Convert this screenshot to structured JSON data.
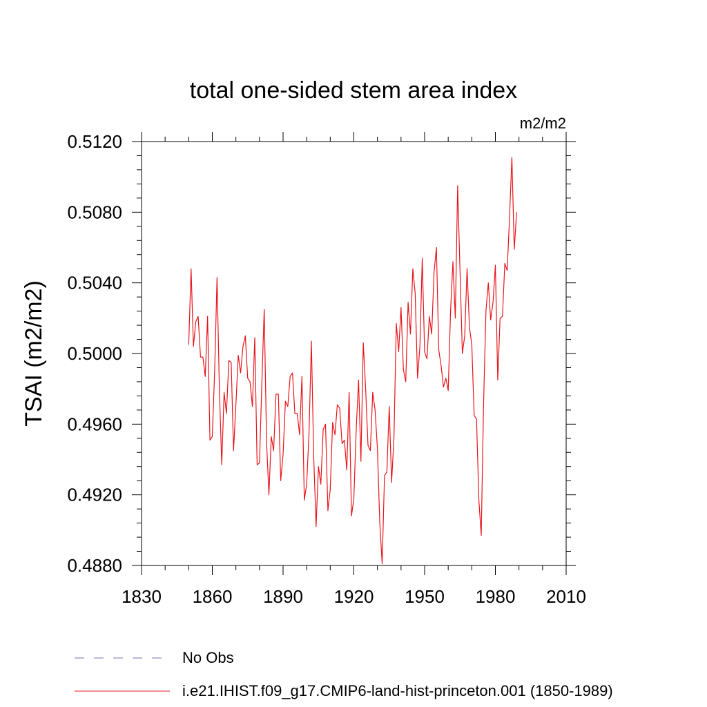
{
  "chart_data": {
    "type": "line",
    "title": "total one-sided stem area index",
    "units": "m2/m2",
    "ylabel": "TSAI  (m2/m2)",
    "xlabel": "",
    "xlim": [
      1830,
      2010
    ],
    "ylim": [
      0.488,
      0.512
    ],
    "xticks": [
      "1830",
      "1860",
      "1890",
      "1920",
      "1950",
      "1980",
      "2010"
    ],
    "yticks": [
      "0.4880",
      "0.4920",
      "0.4960",
      "0.5000",
      "0.5040",
      "0.5080",
      "0.5120"
    ],
    "grid": false,
    "legend": [
      {
        "label": "No Obs",
        "style": "dashed",
        "color": "#7a6fb0"
      },
      {
        "label": "i.e21.IHIST.f09_g17.CMIP6-land-hist-princeton.001 (1850-1989)",
        "style": "solid",
        "color": "#e8141b"
      }
    ],
    "series": [
      {
        "name": "i.e21.IHIST.f09_g17.CMIP6-land-hist-princeton.001 (1850-1989)",
        "color": "#e8141b",
        "x_start": 1850,
        "values": [
          0.5005,
          0.5048,
          0.5004,
          0.5018,
          0.5021,
          0.4998,
          0.4998,
          0.4987,
          0.5021,
          0.4951,
          0.4953,
          0.499,
          0.5043,
          0.498,
          0.4937,
          0.4978,
          0.4966,
          0.4996,
          0.4995,
          0.4945,
          0.4971,
          0.4999,
          0.4989,
          0.5004,
          0.501,
          0.4986,
          0.4984,
          0.497,
          0.5009,
          0.4937,
          0.4938,
          0.4983,
          0.5025,
          0.495,
          0.492,
          0.4953,
          0.4945,
          0.4977,
          0.4977,
          0.4928,
          0.4943,
          0.4973,
          0.497,
          0.4987,
          0.4989,
          0.4966,
          0.4966,
          0.4954,
          0.4987,
          0.4917,
          0.4926,
          0.4955,
          0.5007,
          0.4941,
          0.4902,
          0.4936,
          0.4926,
          0.4957,
          0.496,
          0.4911,
          0.4923,
          0.4961,
          0.4954,
          0.4971,
          0.4969,
          0.4949,
          0.4951,
          0.4934,
          0.4978,
          0.4908,
          0.4918,
          0.4957,
          0.4985,
          0.4939,
          0.5006,
          0.498,
          0.4948,
          0.4945,
          0.4978,
          0.4968,
          0.4946,
          0.4904,
          0.4881,
          0.4931,
          0.4933,
          0.497,
          0.4927,
          0.4952,
          0.5017,
          0.5001,
          0.5026,
          0.4991,
          0.4984,
          0.5029,
          0.5011,
          0.5048,
          0.5034,
          0.4986,
          0.5004,
          0.5054,
          0.5001,
          0.4997,
          0.5021,
          0.5011,
          0.5046,
          0.506,
          0.5002,
          0.4993,
          0.4981,
          0.4986,
          0.4979,
          0.5024,
          0.5052,
          0.502,
          0.5095,
          0.5047,
          0.5,
          0.501,
          0.5048,
          0.5015,
          0.5005,
          0.4965,
          0.4963,
          0.4917,
          0.4897,
          0.4972,
          0.5024,
          0.504,
          0.5019,
          0.5029,
          0.505,
          0.4985,
          0.502,
          0.5021,
          0.5051,
          0.5047,
          0.5077,
          0.5111,
          0.5059,
          0.508
        ]
      }
    ]
  }
}
